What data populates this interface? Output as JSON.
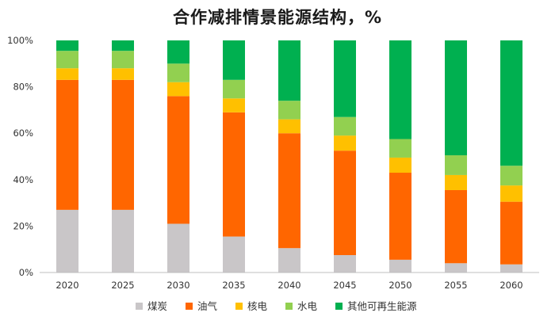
{
  "chart_data": {
    "type": "bar",
    "stacked": true,
    "title": "合作减排情景能源结构，%",
    "xlabel": "",
    "ylabel": "",
    "ylim": [
      0,
      100
    ],
    "yticks": [
      "0%",
      "20%",
      "40%",
      "60%",
      "80%",
      "100%"
    ],
    "categories": [
      "2020",
      "2025",
      "2030",
      "2035",
      "2040",
      "2045",
      "2050",
      "2055",
      "2060"
    ],
    "legend_position": "bottom",
    "grid": false,
    "series": [
      {
        "name": "煤炭",
        "color": "#c9c6c8",
        "values": [
          27,
          27,
          21,
          15.5,
          10.5,
          7.5,
          5.5,
          4,
          3.5
        ]
      },
      {
        "name": "油气",
        "color": "#ff6600",
        "values": [
          56,
          56,
          55,
          53.5,
          49.5,
          45,
          37.5,
          31.5,
          27
        ]
      },
      {
        "name": "核电",
        "color": "#ffc000",
        "values": [
          5,
          5,
          6,
          6,
          6,
          6.5,
          6.5,
          6.5,
          7
        ]
      },
      {
        "name": "水电",
        "color": "#92d050",
        "values": [
          7.5,
          7.5,
          8,
          8,
          8,
          8,
          8,
          8.5,
          8.5
        ]
      },
      {
        "name": "其他可再生能源",
        "color": "#00b050",
        "values": [
          4.5,
          4.5,
          10,
          17,
          26,
          33,
          42.5,
          49.5,
          54
        ]
      }
    ]
  }
}
